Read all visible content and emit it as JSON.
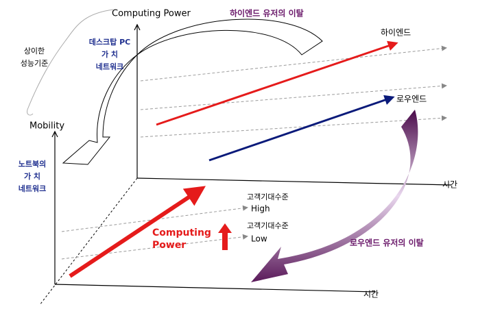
{
  "header": {
    "title": "Computing Power",
    "high_end_churn": "하이엔드 유저의 이탈"
  },
  "desktop": {
    "lines": [
      "데스크탑 PC",
      "가 치",
      "네트워크"
    ]
  },
  "standard": {
    "lines": [
      "상이한",
      "성능기준"
    ]
  },
  "mobility": "Mobility",
  "high_end": "하이엔드",
  "low_end": "로우엔드",
  "notebook": {
    "lines": [
      "노트북의",
      "가 치",
      "네트워크"
    ]
  },
  "upper_time": "시간",
  "expect_high": {
    "label": "고객기대수준",
    "level": "High"
  },
  "expect_low": {
    "label": "고객기대수준",
    "level": "Low"
  },
  "computing_power": {
    "lines": [
      "Computing",
      "Power"
    ]
  },
  "low_end_churn": "로우엔드 유저의 이탈",
  "lower_time": "시간"
}
